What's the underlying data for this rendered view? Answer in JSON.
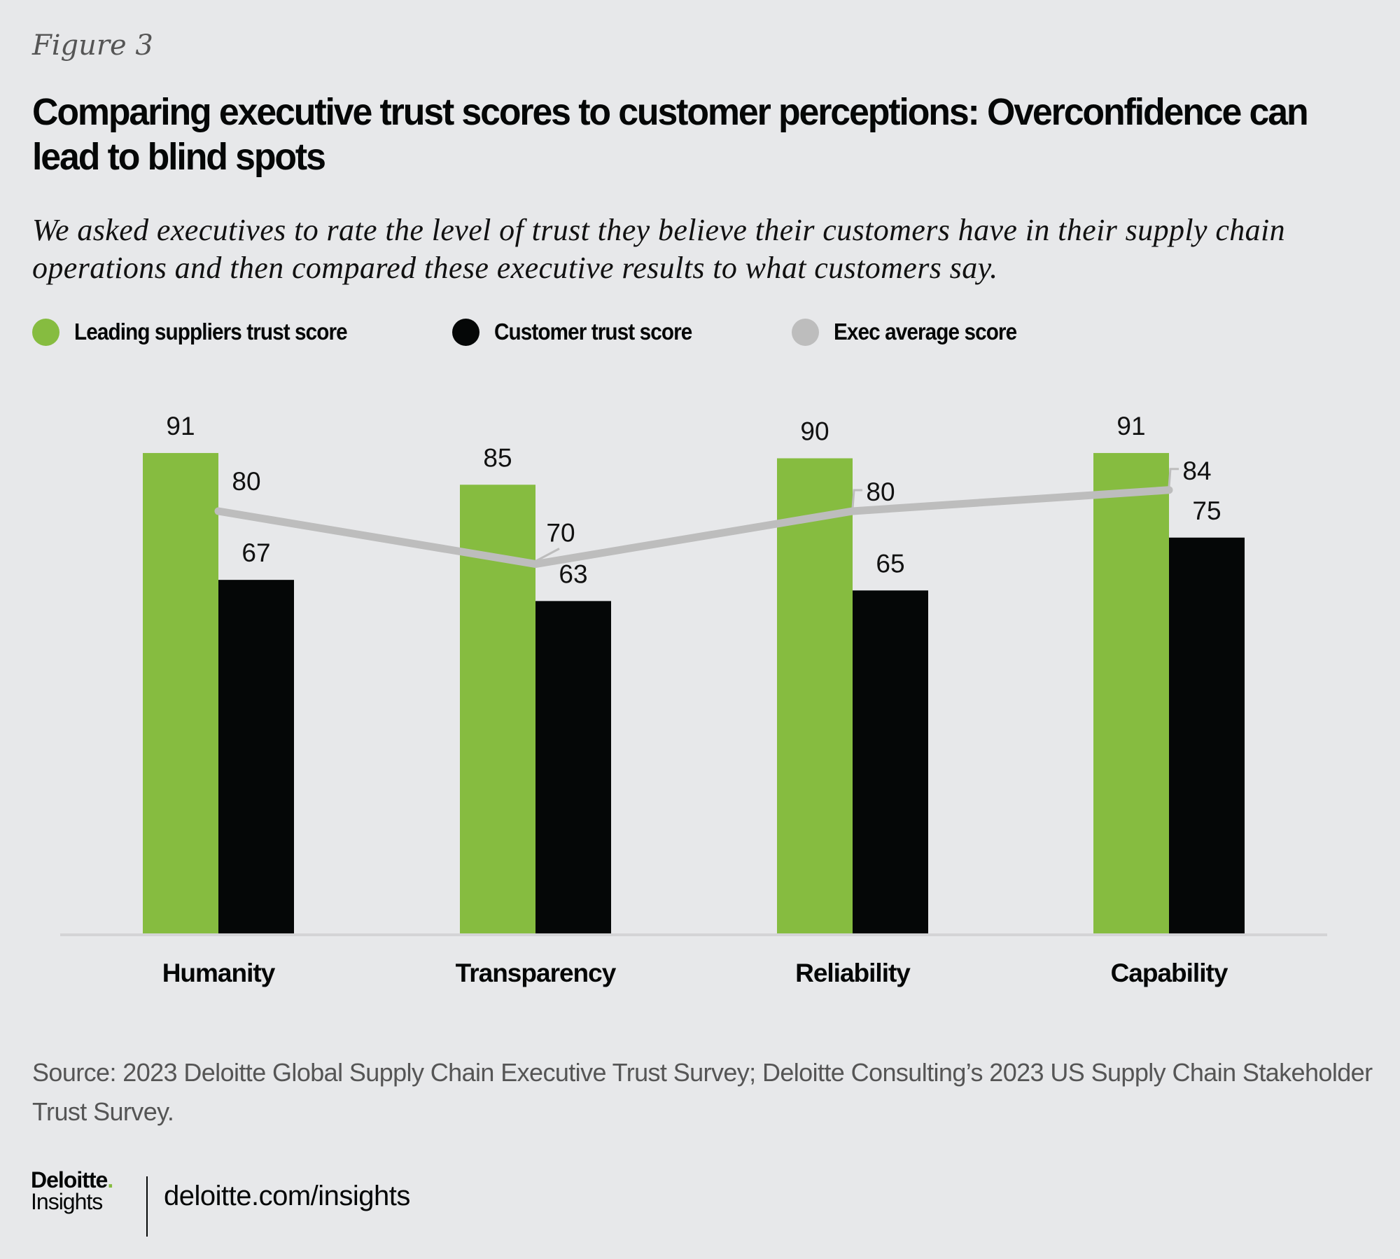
{
  "figure_label": "Figure 3",
  "title": "Comparing executive trust scores to customer perceptions: Overconfidence can lead to blind spots",
  "subtitle": "We asked executives to rate the level of trust they believe their customers have in their supply chain operations and then compared these executive results to what customers say.",
  "legend": [
    {
      "label": "Leading suppliers trust score",
      "color": "#86bc40"
    },
    {
      "label": "Customer trust score",
      "color": "#050707"
    },
    {
      "label": "Exec average score",
      "color": "#bdbdbd"
    }
  ],
  "chart_data": {
    "type": "bar",
    "title": "Comparing executive trust scores to customer perceptions: Overconfidence can lead to blind spots",
    "xlabel": "",
    "ylabel": "",
    "ylim": [
      0,
      100
    ],
    "grid": false,
    "legend_position": "top-left",
    "categories": [
      "Humanity",
      "Transparency",
      "Reliability",
      "Capability"
    ],
    "series": [
      {
        "name": "Leading suppliers trust score",
        "type": "bar",
        "color": "#86bc40",
        "values": [
          91,
          85,
          90,
          91
        ]
      },
      {
        "name": "Customer trust score",
        "type": "bar",
        "color": "#050707",
        "values": [
          67,
          63,
          65,
          75
        ]
      },
      {
        "name": "Exec average score",
        "type": "line",
        "color": "#bdbdbd",
        "values": [
          80,
          70,
          80,
          84
        ]
      }
    ]
  },
  "source": "Source: 2023 Deloitte Global Supply Chain Executive Trust Survey; Deloitte Consulting’s 2023 US Supply Chain Stakeholder Trust Survey.",
  "footer": {
    "brand_name": "Deloitte",
    "brand_dot": ".",
    "brand_sub": "Insights",
    "url": "deloitte.com/insights"
  }
}
